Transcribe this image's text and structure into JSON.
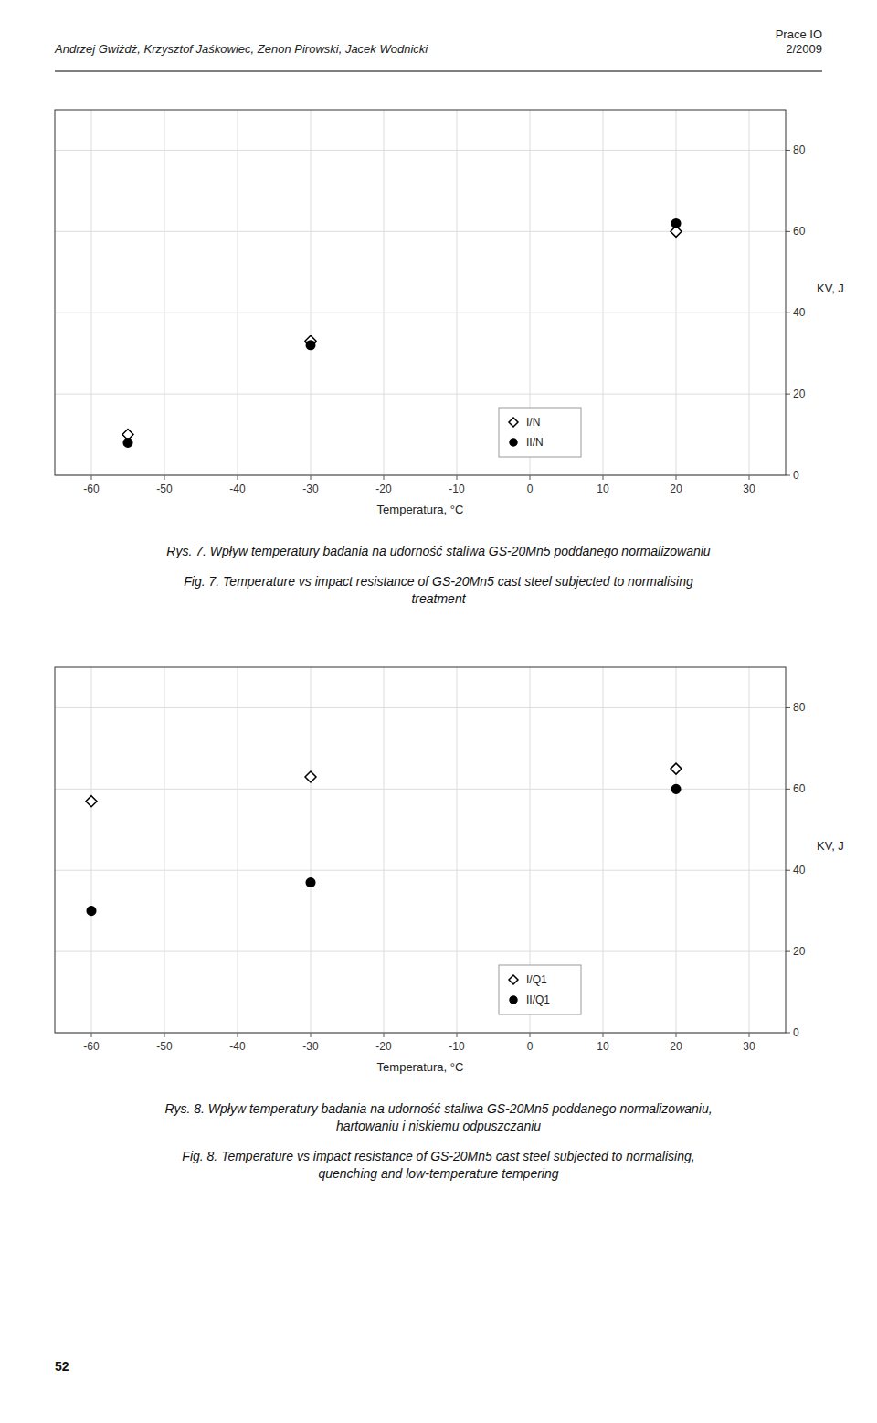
{
  "header_left": "Andrzej Gwiżdż, Krzysztof Jaśkowiec, Zenon Pirowski, Jacek Wodnicki",
  "header_right": "Prace IO\n2/2009",
  "page_number": "52",
  "chart_data": [
    {
      "type": "scatter",
      "title": "Rys. 7. Wpływ temperatury badania na udorność staliwa GS-20Mn5 poddanego normalizowaniu",
      "subtitle": "Fig. 7. Temperature vs impact resistance of GS-20Mn5 cast steel subjected to normalising\ntreatment",
      "x_label": "Temperatura, °C",
      "y_label": "KV, J",
      "series": [
        {
          "name": "I/N",
          "color": "#000000",
          "marker": "open-diamond",
          "x": [
            -55,
            -30,
            20
          ],
          "values": [
            10,
            33,
            60
          ]
        },
        {
          "name": "II/N",
          "color": "#000000",
          "marker": "filled-circle",
          "x": [
            -55,
            -30,
            20
          ],
          "values": [
            8,
            32,
            62
          ]
        }
      ],
      "xlim": [
        -65,
        35
      ],
      "ylim": [
        0,
        90
      ],
      "xticks": [
        -60,
        -50,
        -40,
        -30,
        -20,
        -10,
        0,
        10,
        20,
        30
      ],
      "yticks": [
        0,
        20,
        40,
        60,
        80
      ],
      "grid": true,
      "legend": "lower right"
    },
    {
      "type": "scatter",
      "title": "Rys. 8. Wpływ temperatury badania na udorność staliwa GS-20Mn5 poddanego normalizowaniu,\nhartowaniu i niskiemu odpuszczaniu",
      "subtitle": "Fig. 8. Temperature vs impact resistance of GS-20Mn5 cast steel subjected to normalising,\nquenching and low-temperature tempering",
      "x_label": "Temperatura, °C",
      "y_label": "KV, J",
      "series": [
        {
          "name": "I/Q1",
          "color": "#000000",
          "marker": "open-diamond",
          "x": [
            -60,
            -30,
            20
          ],
          "values": [
            57,
            63,
            65
          ]
        },
        {
          "name": "II/Q1",
          "color": "#000000",
          "marker": "filled-circle",
          "x": [
            -60,
            -30,
            20
          ],
          "values": [
            30,
            37,
            60
          ]
        }
      ],
      "xlim": [
        -65,
        35
      ],
      "ylim": [
        0,
        90
      ],
      "xticks": [
        -60,
        -50,
        -40,
        -30,
        -20,
        -10,
        0,
        10,
        20,
        30
      ],
      "yticks": [
        0,
        20,
        40,
        60,
        80
      ],
      "grid": true,
      "legend": "lower right"
    }
  ]
}
